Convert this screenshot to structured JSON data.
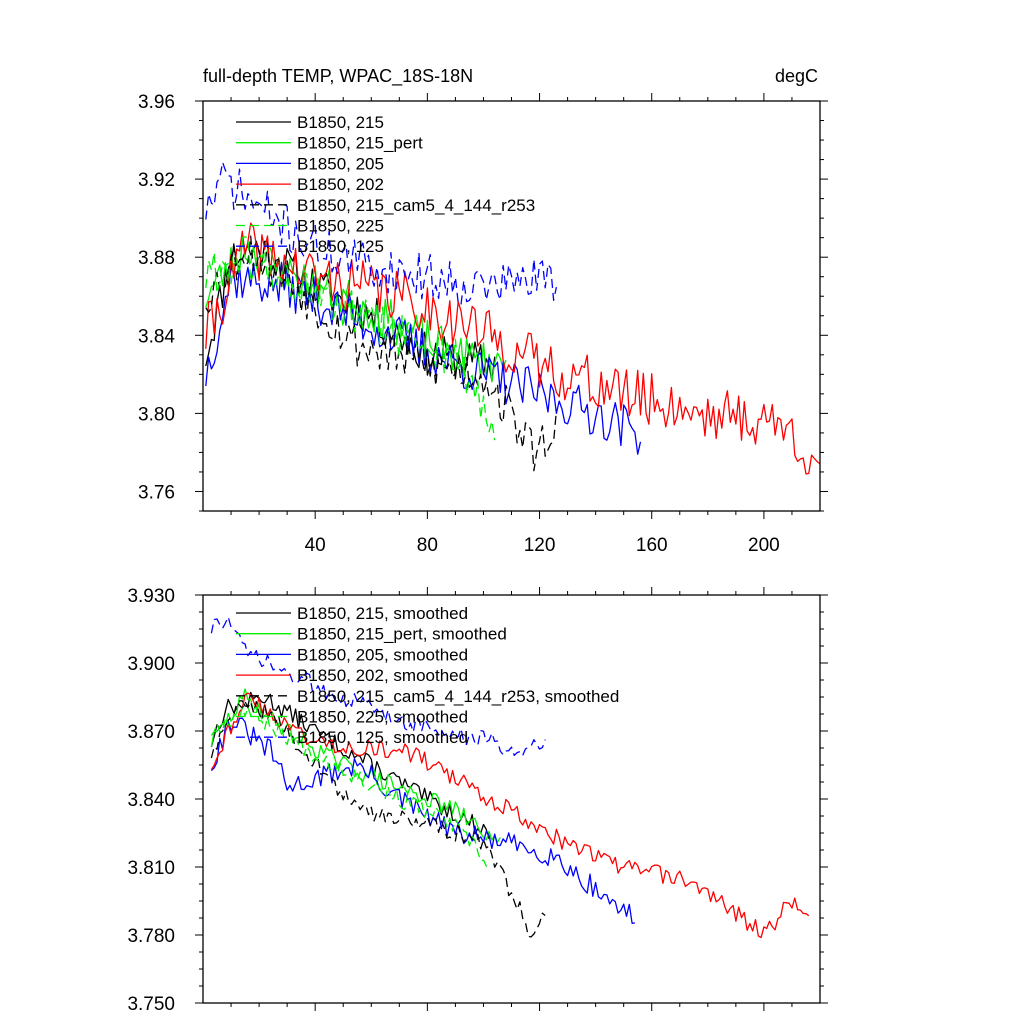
{
  "chart_data": [
    {
      "type": "line",
      "title": "full-depth TEMP, WPAC_18S-18N",
      "units_label": "degC",
      "xlabel": "",
      "ylabel": "",
      "xlim": [
        0,
        220
      ],
      "ylim": [
        3.75,
        3.96
      ],
      "xticks": [
        40,
        80,
        120,
        160,
        200
      ],
      "xtick_labels": [
        "40",
        "80",
        "120",
        "160",
        "200"
      ],
      "yticks": [
        3.76,
        3.8,
        3.84,
        3.88,
        3.92,
        3.96
      ],
      "ytick_labels": [
        "3.76",
        "3.80",
        "3.84",
        "3.88",
        "3.92",
        "3.96"
      ],
      "legend_position": "top-left",
      "series": [
        {
          "name": "B1850, 215",
          "color": "#000000",
          "dash": "solid",
          "x_start": 1,
          "x_end": 104,
          "noise": 0.011,
          "seed": 11,
          "anchors": [
            [
              1,
              3.83
            ],
            [
              10,
              3.88
            ],
            [
              20,
              3.885
            ],
            [
              40,
              3.865
            ],
            [
              60,
              3.85
            ],
            [
              80,
              3.83
            ],
            [
              104,
              3.825
            ]
          ]
        },
        {
          "name": "B1850, 215_pert",
          "color": "#00ee00",
          "dash": "solid",
          "x_start": 1,
          "x_end": 108,
          "noise": 0.011,
          "seed": 23,
          "anchors": [
            [
              1,
              3.86
            ],
            [
              15,
              3.885
            ],
            [
              25,
              3.875
            ],
            [
              50,
              3.86
            ],
            [
              70,
              3.845
            ],
            [
              90,
              3.83
            ],
            [
              108,
              3.825
            ]
          ]
        },
        {
          "name": "B1850, 205",
          "color": "#0000ff",
          "dash": "solid",
          "x_start": 1,
          "x_end": 156,
          "noise": 0.012,
          "seed": 37,
          "anchors": [
            [
              1,
              3.82
            ],
            [
              10,
              3.87
            ],
            [
              30,
              3.865
            ],
            [
              60,
              3.845
            ],
            [
              90,
              3.825
            ],
            [
              120,
              3.81
            ],
            [
              140,
              3.8
            ],
            [
              156,
              3.79
            ]
          ]
        },
        {
          "name": "B1850, 202",
          "color": "#ff0000",
          "dash": "solid",
          "x_start": 1,
          "x_end": 220,
          "noise": 0.014,
          "seed": 41,
          "anchors": [
            [
              1,
              3.84
            ],
            [
              15,
              3.885
            ],
            [
              40,
              3.87
            ],
            [
              70,
              3.86
            ],
            [
              95,
              3.845
            ],
            [
              120,
              3.825
            ],
            [
              150,
              3.81
            ],
            [
              180,
              3.8
            ],
            [
              205,
              3.795
            ],
            [
              220,
              3.775
            ]
          ]
        },
        {
          "name": "B1850, 215_cam5_4_144_r253",
          "color": "#000000",
          "dash": "dashed",
          "x_start": 1,
          "x_end": 126,
          "noise": 0.012,
          "seed": 53,
          "anchors": [
            [
              1,
              3.86
            ],
            [
              15,
              3.885
            ],
            [
              30,
              3.87
            ],
            [
              55,
              3.835
            ],
            [
              80,
              3.825
            ],
            [
              100,
              3.82
            ],
            [
              112,
              3.795
            ],
            [
              118,
              3.78
            ],
            [
              126,
              3.795
            ]
          ]
        },
        {
          "name": "B1850, 225",
          "color": "#00ee00",
          "dash": "dashed",
          "x_start": 1,
          "x_end": 104,
          "noise": 0.012,
          "seed": 61,
          "anchors": [
            [
              1,
              3.87
            ],
            [
              15,
              3.88
            ],
            [
              40,
              3.86
            ],
            [
              70,
              3.84
            ],
            [
              90,
              3.83
            ],
            [
              100,
              3.8
            ],
            [
              104,
              3.79
            ]
          ]
        },
        {
          "name": "B1850, 125",
          "color": "#0000ff",
          "dash": "dashed",
          "x_start": 1,
          "x_end": 126,
          "noise": 0.012,
          "seed": 71,
          "anchors": [
            [
              1,
              3.905
            ],
            [
              8,
              3.92
            ],
            [
              20,
              3.905
            ],
            [
              40,
              3.885
            ],
            [
              60,
              3.875
            ],
            [
              80,
              3.87
            ],
            [
              100,
              3.865
            ],
            [
              126,
              3.87
            ]
          ]
        }
      ]
    },
    {
      "type": "line",
      "title": "",
      "xlabel": "",
      "ylabel": "",
      "xlim": [
        0,
        220
      ],
      "ylim": [
        3.75,
        3.93
      ],
      "xticks": [
        40,
        80,
        120,
        160,
        200
      ],
      "xtick_labels": [],
      "yticks": [
        3.75,
        3.78,
        3.81,
        3.84,
        3.87,
        3.9,
        3.93
      ],
      "ytick_labels": [
        "3.750",
        "3.780",
        "3.810",
        "3.840",
        "3.870",
        "3.900",
        "3.930"
      ],
      "legend_position": "top-left",
      "series": [
        {
          "name": "B1850, 215, smoothed",
          "color": "#000000",
          "dash": "solid",
          "x_start": 3,
          "x_end": 102,
          "noise": 0.004,
          "seed": 13,
          "anchors": [
            [
              3,
              3.865
            ],
            [
              8,
              3.88
            ],
            [
              22,
              3.885
            ],
            [
              40,
              3.87
            ],
            [
              60,
              3.855
            ],
            [
              80,
              3.84
            ],
            [
              95,
              3.83
            ],
            [
              102,
              3.825
            ]
          ]
        },
        {
          "name": "B1850, 215_pert, smoothed",
          "color": "#00ee00",
          "dash": "solid",
          "x_start": 3,
          "x_end": 106,
          "noise": 0.004,
          "seed": 29,
          "anchors": [
            [
              3,
              3.865
            ],
            [
              15,
              3.885
            ],
            [
              30,
              3.87
            ],
            [
              50,
              3.855
            ],
            [
              70,
              3.845
            ],
            [
              90,
              3.835
            ],
            [
              106,
              3.82
            ]
          ]
        },
        {
          "name": "B1850, 205, smoothed",
          "color": "#0000ff",
          "dash": "solid",
          "x_start": 3,
          "x_end": 154,
          "noise": 0.005,
          "seed": 31,
          "anchors": [
            [
              3,
              3.855
            ],
            [
              10,
              3.875
            ],
            [
              25,
              3.86
            ],
            [
              30,
              3.845
            ],
            [
              55,
              3.855
            ],
            [
              70,
              3.84
            ],
            [
              90,
              3.825
            ],
            [
              110,
              3.82
            ],
            [
              125,
              3.815
            ],
            [
              140,
              3.8
            ],
            [
              154,
              3.787
            ]
          ]
        },
        {
          "name": "B1850, 202, smoothed",
          "color": "#ff0000",
          "dash": "solid",
          "x_start": 3,
          "x_end": 216,
          "noise": 0.004,
          "seed": 43,
          "anchors": [
            [
              3,
              3.855
            ],
            [
              15,
              3.885
            ],
            [
              40,
              3.865
            ],
            [
              75,
              3.86
            ],
            [
              95,
              3.845
            ],
            [
              110,
              3.835
            ],
            [
              130,
              3.82
            ],
            [
              150,
              3.81
            ],
            [
              170,
              3.805
            ],
            [
              185,
              3.795
            ],
            [
              200,
              3.78
            ],
            [
              210,
              3.795
            ],
            [
              216,
              3.79
            ]
          ]
        },
        {
          "name": "B1850, 215_cam5_4_144_r253, smoothed",
          "color": "#000000",
          "dash": "dashed",
          "x_start": 3,
          "x_end": 122,
          "noise": 0.004,
          "seed": 59,
          "anchors": [
            [
              3,
              3.86
            ],
            [
              15,
              3.885
            ],
            [
              30,
              3.87
            ],
            [
              55,
              3.835
            ],
            [
              80,
              3.83
            ],
            [
              100,
              3.82
            ],
            [
              112,
              3.795
            ],
            [
              117,
              3.78
            ],
            [
              122,
              3.79
            ]
          ]
        },
        {
          "name": "B1850, 225, smoothed",
          "color": "#00ee00",
          "dash": "dashed",
          "x_start": 3,
          "x_end": 102,
          "noise": 0.004,
          "seed": 67,
          "anchors": [
            [
              3,
              3.87
            ],
            [
              15,
              3.88
            ],
            [
              40,
              3.86
            ],
            [
              70,
              3.84
            ],
            [
              88,
              3.83
            ],
            [
              96,
              3.82
            ],
            [
              102,
              3.81
            ]
          ]
        },
        {
          "name": "B1850, 125, smoothed",
          "color": "#0000ff",
          "dash": "dashed",
          "x_start": 3,
          "x_end": 122,
          "noise": 0.004,
          "seed": 73,
          "anchors": [
            [
              3,
              3.915
            ],
            [
              8,
              3.92
            ],
            [
              15,
              3.905
            ],
            [
              30,
              3.895
            ],
            [
              50,
              3.885
            ],
            [
              70,
              3.875
            ],
            [
              90,
              3.868
            ],
            [
              105,
              3.865
            ],
            [
              110,
              3.86
            ],
            [
              122,
              3.867
            ]
          ]
        }
      ]
    }
  ]
}
